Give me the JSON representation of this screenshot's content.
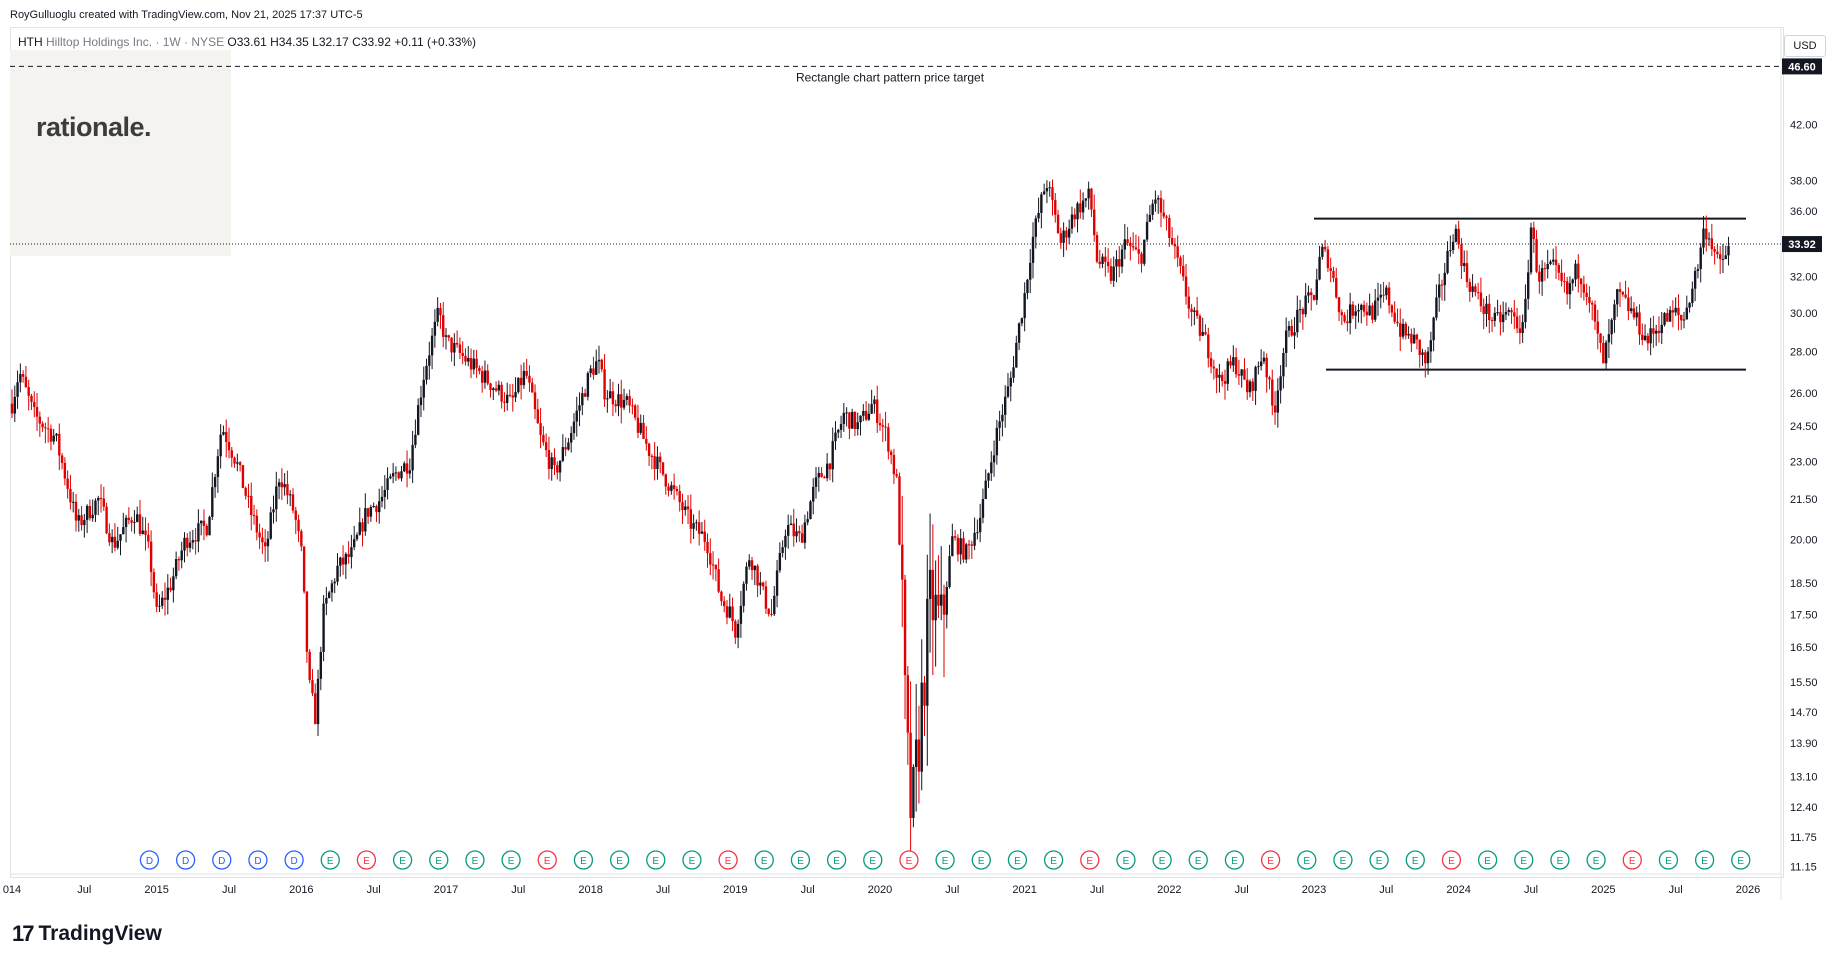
{
  "header": {
    "attribution": "RoyGulluoglu created with TradingView.com, Nov 21, 2025 17:37 UTC-5",
    "ticker": "HTH",
    "name": "Hilltop Holdings Inc. · 1W · NYSE",
    "ohlc": "O33.61  H34.35  L32.17  C33.92  +0.11 (+0.33%)"
  },
  "logo_text": "rationale.",
  "currency_button": "USD",
  "brand": {
    "mark": "17",
    "word": "TradingView"
  },
  "colors": {
    "up": "#131722",
    "down": "#e00000",
    "events_dividend": "#2962ff",
    "events_earnings_beat": "#089981",
    "events_earnings_miss": "#f23645"
  },
  "chart_data": {
    "type": "candlestick",
    "title": "",
    "y_scale": "log",
    "ylim": [
      11.0,
      50.0
    ],
    "y_ticks": [
      "11.15",
      "11.75",
      "12.40",
      "13.10",
      "13.90",
      "14.70",
      "15.50",
      "16.50",
      "17.50",
      "18.50",
      "20.00",
      "21.50",
      "23.00",
      "24.50",
      "26.00",
      "28.00",
      "30.00",
      "32.00",
      "36.00",
      "38.00",
      "42.00"
    ],
    "x_ticks": [
      "014",
      "Jul",
      "2015",
      "Jul",
      "2016",
      "Jul",
      "2017",
      "Jul",
      "2018",
      "Jul",
      "2019",
      "Jul",
      "2020",
      "Jul",
      "2021",
      "Jul",
      "2022",
      "Jul",
      "2023",
      "Jul",
      "2024",
      "Jul",
      "2025",
      "Jul",
      "2026"
    ],
    "last_price": "33.92",
    "target_price": "46.60",
    "annotation": "Rectangle chart pattern price target",
    "rectangle": {
      "resistance": 35.5,
      "support": 27.1,
      "start": "2023-02",
      "end": "2025-12"
    },
    "series_path": [
      [
        2014.0,
        25.5
      ],
      [
        2014.05,
        27
      ],
      [
        2014.15,
        25
      ],
      [
        2014.3,
        24
      ],
      [
        2014.45,
        20.5
      ],
      [
        2014.6,
        21.5
      ],
      [
        2014.7,
        19.8
      ],
      [
        2014.85,
        21
      ],
      [
        2014.95,
        19.5
      ],
      [
        2015.0,
        17.5
      ],
      [
        2015.1,
        18.5
      ],
      [
        2015.2,
        20
      ],
      [
        2015.35,
        20.5
      ],
      [
        2015.45,
        24.5
      ],
      [
        2015.55,
        23
      ],
      [
        2015.65,
        21
      ],
      [
        2015.75,
        19.5
      ],
      [
        2015.85,
        22.5
      ],
      [
        2015.95,
        21
      ],
      [
        2016.0,
        19.5
      ],
      [
        2016.05,
        15.5
      ],
      [
        2016.1,
        14.5
      ],
      [
        2016.15,
        17.5
      ],
      [
        2016.25,
        19
      ],
      [
        2016.35,
        19.5
      ],
      [
        2016.45,
        21
      ],
      [
        2016.55,
        21.5
      ],
      [
        2016.65,
        22.5
      ],
      [
        2016.75,
        23
      ],
      [
        2016.85,
        27
      ],
      [
        2016.95,
        30
      ],
      [
        2017.0,
        28.5
      ],
      [
        2017.15,
        27.5
      ],
      [
        2017.3,
        26.5
      ],
      [
        2017.45,
        25.5
      ],
      [
        2017.55,
        27
      ],
      [
        2017.65,
        24
      ],
      [
        2017.75,
        22.5
      ],
      [
        2017.85,
        24
      ],
      [
        2017.95,
        26
      ],
      [
        2018.0,
        27
      ],
      [
        2018.05,
        27.5
      ],
      [
        2018.1,
        26
      ],
      [
        2018.25,
        25.5
      ],
      [
        2018.4,
        23.5
      ],
      [
        2018.55,
        22
      ],
      [
        2018.7,
        20.5
      ],
      [
        2018.8,
        20
      ],
      [
        2018.9,
        18
      ],
      [
        2018.97,
        17.5
      ],
      [
        2019.0,
        17
      ],
      [
        2019.1,
        19.5
      ],
      [
        2019.2,
        18
      ],
      [
        2019.25,
        17.5
      ],
      [
        2019.35,
        20.5
      ],
      [
        2019.45,
        20
      ],
      [
        2019.55,
        22
      ],
      [
        2019.65,
        23
      ],
      [
        2019.75,
        25
      ],
      [
        2019.85,
        24.5
      ],
      [
        2019.95,
        25.5
      ],
      [
        2020.05,
        24
      ],
      [
        2020.12,
        22
      ],
      [
        2020.18,
        14
      ],
      [
        2020.22,
        12
      ],
      [
        2020.28,
        14.5
      ],
      [
        2020.35,
        18
      ],
      [
        2020.42,
        17
      ],
      [
        2020.5,
        20
      ],
      [
        2020.6,
        19.5
      ],
      [
        2020.7,
        21
      ],
      [
        2020.8,
        24
      ],
      [
        2020.9,
        26.5
      ],
      [
        2021.0,
        31
      ],
      [
        2021.05,
        34
      ],
      [
        2021.15,
        38
      ],
      [
        2021.25,
        34
      ],
      [
        2021.35,
        36
      ],
      [
        2021.45,
        37
      ],
      [
        2021.5,
        33
      ],
      [
        2021.6,
        32
      ],
      [
        2021.7,
        34
      ],
      [
        2021.8,
        33
      ],
      [
        2021.9,
        37
      ],
      [
        2021.98,
        35
      ],
      [
        2022.05,
        33
      ],
      [
        2022.15,
        30
      ],
      [
        2022.25,
        28.5
      ],
      [
        2022.35,
        26.5
      ],
      [
        2022.45,
        27.5
      ],
      [
        2022.55,
        26
      ],
      [
        2022.65,
        28
      ],
      [
        2022.72,
        25
      ],
      [
        2022.8,
        28.5
      ],
      [
        2022.9,
        30
      ],
      [
        2023.0,
        31
      ],
      [
        2023.05,
        33.5
      ],
      [
        2023.1,
        33
      ],
      [
        2023.2,
        29.5
      ],
      [
        2023.3,
        30.5
      ],
      [
        2023.4,
        30
      ],
      [
        2023.5,
        31
      ],
      [
        2023.6,
        29
      ],
      [
        2023.7,
        28.5
      ],
      [
        2023.78,
        27.3
      ],
      [
        2023.85,
        30.5
      ],
      [
        2023.92,
        33
      ],
      [
        2023.97,
        35
      ],
      [
        2024.05,
        32
      ],
      [
        2024.15,
        30.5
      ],
      [
        2024.25,
        29.5
      ],
      [
        2024.35,
        30
      ],
      [
        2024.45,
        29
      ],
      [
        2024.5,
        35
      ],
      [
        2024.55,
        32
      ],
      [
        2024.65,
        32.5
      ],
      [
        2024.75,
        31
      ],
      [
        2024.82,
        32.5
      ],
      [
        2024.9,
        31
      ],
      [
        2024.95,
        29
      ],
      [
        2025.0,
        27.5
      ],
      [
        2025.05,
        29
      ],
      [
        2025.1,
        31
      ],
      [
        2025.2,
        30
      ],
      [
        2025.3,
        28.5
      ],
      [
        2025.4,
        29.5
      ],
      [
        2025.5,
        30
      ],
      [
        2025.55,
        29.5
      ],
      [
        2025.6,
        31
      ],
      [
        2025.65,
        32.5
      ],
      [
        2025.7,
        35
      ],
      [
        2025.75,
        34
      ],
      [
        2025.8,
        32.5
      ],
      [
        2025.88,
        33.92
      ]
    ],
    "event_markers": {
      "2014.95": "D",
      "2015.2": "D",
      "2015.45": "D",
      "2015.7": "D",
      "2015.95": "D",
      "2016.2": "E",
      "2016.45": "E",
      "2016.7": "E",
      "2016.95": "E",
      "2017.2": "E",
      "2017.45": "E",
      "2017.7": "E",
      "2017.95": "E",
      "2018.2": "E",
      "2018.45": "E",
      "2018.7": "E",
      "2018.95": "E",
      "2019.2": "E",
      "2019.45": "E",
      "2019.7": "E",
      "2019.95": "E",
      "2020.2": "E",
      "2020.45": "E",
      "2020.7": "E",
      "2020.95": "E",
      "2021.2": "E",
      "2021.45": "E",
      "2021.7": "E",
      "2021.95": "E",
      "2022.2": "E",
      "2022.45": "E",
      "2022.7": "E",
      "2022.95": "E",
      "2023.2": "E",
      "2023.45": "E",
      "2023.7": "E",
      "2023.95": "E",
      "2024.2": "E",
      "2024.45": "E",
      "2024.7": "E",
      "2024.95": "E",
      "2025.2": "E",
      "2025.45": "E",
      "2025.7": "E",
      "2025.95": "E"
    }
  }
}
